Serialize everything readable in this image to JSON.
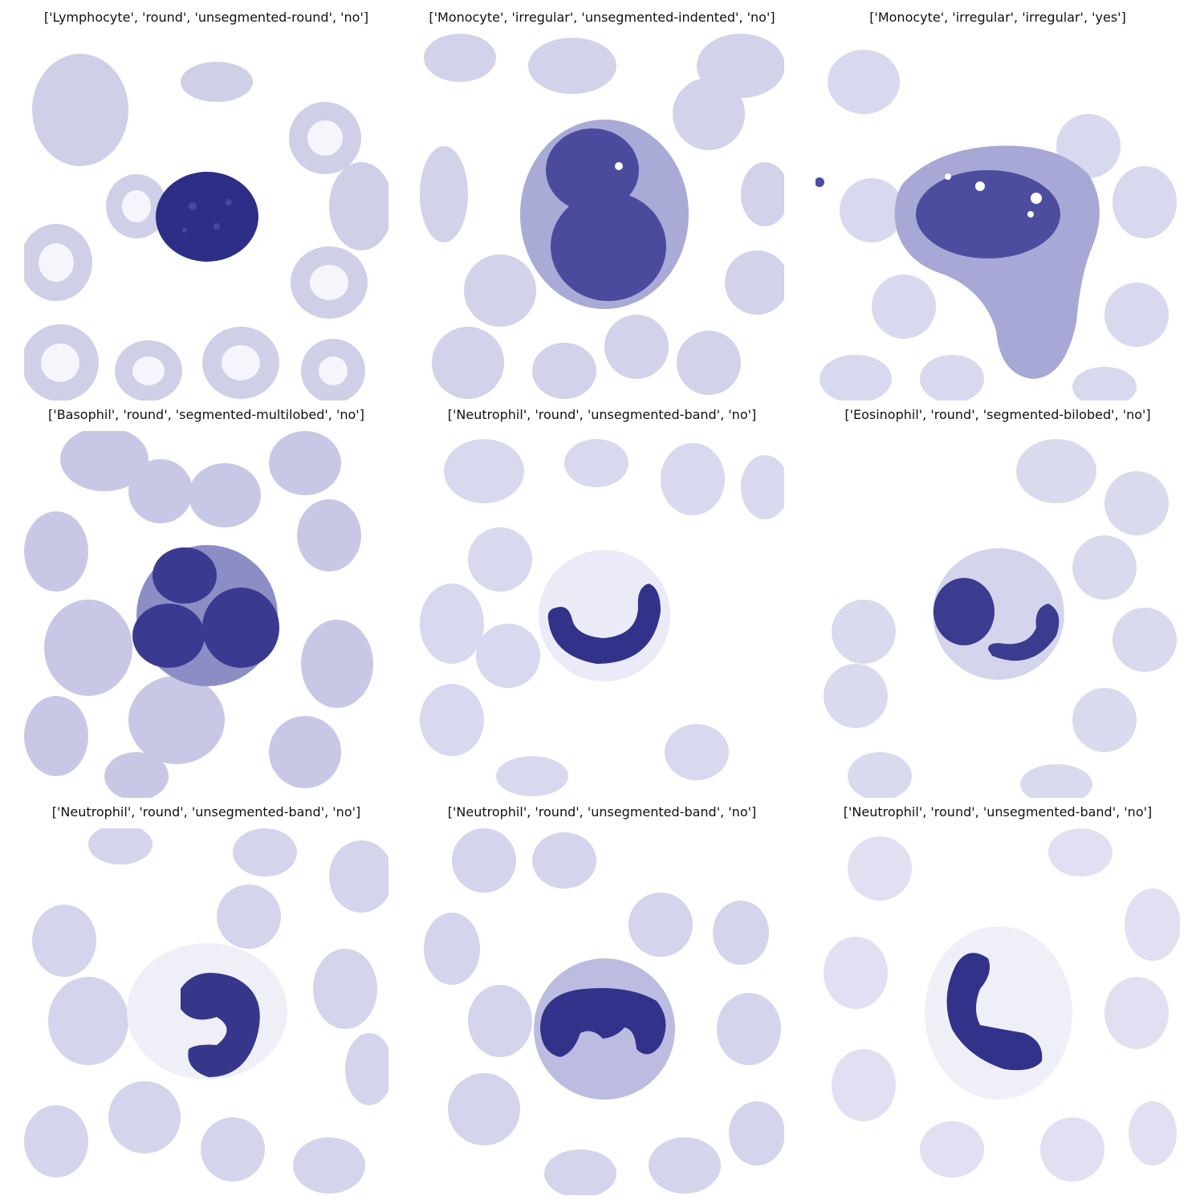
{
  "panels": [
    {
      "title": "['Lymphocyte', 'round', 'unsegmented-round', 'no']"
    },
    {
      "title": "['Monocyte', 'irregular', 'unsegmented-indented', 'no']"
    },
    {
      "title": "['Monocyte', 'irregular', 'irregular', 'yes']"
    },
    {
      "title": "['Basophil', 'round', 'segmented-multilobed', 'no']"
    },
    {
      "title": "['Neutrophil', 'round', 'unsegmented-band', 'no']"
    },
    {
      "title": "['Eosinophil', 'round', 'segmented-bilobed', 'no']"
    },
    {
      "title": "['Neutrophil', 'round', 'unsegmented-band', 'no']"
    },
    {
      "title": "['Neutrophil', 'round', 'unsegmented-band', 'no']"
    },
    {
      "title": "['Neutrophil', 'round', 'unsegmented-band', 'no']"
    }
  ],
  "colors": {
    "rbc": "#c9c9e6",
    "rbc_center": "#f4f4fb",
    "cytoplasm": "#b9b9de",
    "nucleus": "#2e2e86",
    "background": "#ffffff"
  }
}
